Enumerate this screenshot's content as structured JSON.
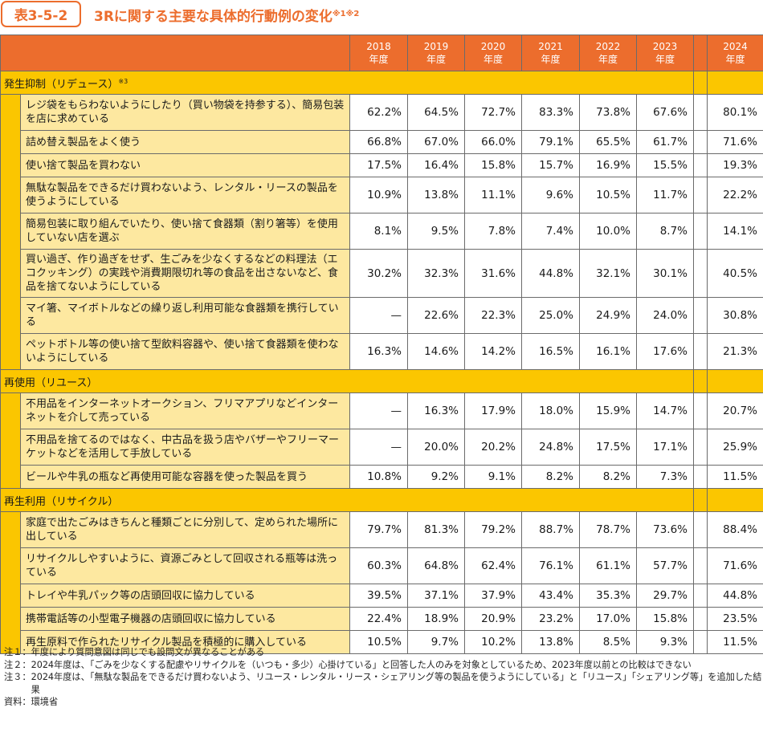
{
  "table_id": "表3-5-2",
  "title": "3Rに関する主要な具体的行動例の変化",
  "title_sup": "※1※2",
  "years": [
    {
      "year": "2018",
      "unit": "年度"
    },
    {
      "year": "2019",
      "unit": "年度"
    },
    {
      "year": "2020",
      "unit": "年度"
    },
    {
      "year": "2021",
      "unit": "年度"
    },
    {
      "year": "2022",
      "unit": "年度"
    },
    {
      "year": "2023",
      "unit": "年度"
    },
    {
      "year": "2024",
      "unit": "年度"
    }
  ],
  "categories": [
    {
      "name": "発生抑制（リデュース）",
      "sup": "※3",
      "rows": [
        {
          "label": "レジ袋をもらわないようにしたり（買い物袋を持参する）、簡易包装を店に求めている",
          "values": [
            "62.2%",
            "64.5%",
            "72.7%",
            "83.3%",
            "73.8%",
            "67.6%",
            "80.1%"
          ]
        },
        {
          "label": "詰め替え製品をよく使う",
          "values": [
            "66.8%",
            "67.0%",
            "66.0%",
            "79.1%",
            "65.5%",
            "61.7%",
            "71.6%"
          ]
        },
        {
          "label": "使い捨て製品を買わない",
          "values": [
            "17.5%",
            "16.4%",
            "15.8%",
            "15.7%",
            "16.9%",
            "15.5%",
            "19.3%"
          ]
        },
        {
          "label": "無駄な製品をできるだけ買わないよう、レンタル・リースの製品を使うようにしている",
          "values": [
            "10.9%",
            "13.8%",
            "11.1%",
            "9.6%",
            "10.5%",
            "11.7%",
            "22.2%"
          ]
        },
        {
          "label": "簡易包装に取り組んでいたり、使い捨て食器類（割り箸等）を使用していない店を選ぶ",
          "values": [
            "8.1%",
            "9.5%",
            "7.8%",
            "7.4%",
            "10.0%",
            "8.7%",
            "14.1%"
          ]
        },
        {
          "label": "買い過ぎ、作り過ぎをせず、生ごみを少なくするなどの料理法（エコクッキング）の実践や消費期限切れ等の食品を出さないなど、食品を捨てないようにしている",
          "values": [
            "30.2%",
            "32.3%",
            "31.6%",
            "44.8%",
            "32.1%",
            "30.1%",
            "40.5%"
          ]
        },
        {
          "label": "マイ箸、マイボトルなどの繰り返し利用可能な食器類を携行している",
          "values": [
            "—",
            "22.6%",
            "22.3%",
            "25.0%",
            "24.9%",
            "24.0%",
            "30.8%"
          ]
        },
        {
          "label": "ペットボトル等の使い捨て型飲料容器や、使い捨て食器類を使わないようにしている",
          "values": [
            "16.3%",
            "14.6%",
            "14.2%",
            "16.5%",
            "16.1%",
            "17.6%",
            "21.3%"
          ]
        }
      ]
    },
    {
      "name": "再使用（リユース）",
      "sup": "",
      "rows": [
        {
          "label": "不用品をインターネットオークション、フリマアプリなどインターネットを介して売っている",
          "values": [
            "—",
            "16.3%",
            "17.9%",
            "18.0%",
            "15.9%",
            "14.7%",
            "20.7%"
          ]
        },
        {
          "label": "不用品を捨てるのではなく、中古品を扱う店やバザーやフリーマーケットなどを活用して手放している",
          "values": [
            "—",
            "20.0%",
            "20.2%",
            "24.8%",
            "17.5%",
            "17.1%",
            "25.9%"
          ]
        },
        {
          "label": "ビールや牛乳の瓶など再使用可能な容器を使った製品を買う",
          "values": [
            "10.8%",
            "9.2%",
            "9.1%",
            "8.2%",
            "8.2%",
            "7.3%",
            "11.5%"
          ]
        }
      ]
    },
    {
      "name": "再生利用（リサイクル）",
      "sup": "",
      "rows": [
        {
          "label": "家庭で出たごみはきちんと種類ごとに分別して、定められた場所に出している",
          "values": [
            "79.7%",
            "81.3%",
            "79.2%",
            "88.7%",
            "78.7%",
            "73.6%",
            "88.4%"
          ]
        },
        {
          "label": "リサイクルしやすいように、資源ごみとして回収される瓶等は洗っている",
          "values": [
            "60.3%",
            "64.8%",
            "62.4%",
            "76.1%",
            "61.1%",
            "57.7%",
            "71.6%"
          ]
        },
        {
          "label": "トレイや牛乳パック等の店頭回収に協力している",
          "values": [
            "39.5%",
            "37.1%",
            "37.9%",
            "43.4%",
            "35.3%",
            "29.7%",
            "44.8%"
          ]
        },
        {
          "label": "携帯電話等の小型電子機器の店頭回収に協力している",
          "values": [
            "22.4%",
            "18.9%",
            "20.9%",
            "23.2%",
            "17.0%",
            "15.8%",
            "23.5%"
          ]
        },
        {
          "label": "再生原料で作られたリサイクル製品を積極的に購入している",
          "values": [
            "10.5%",
            "9.7%",
            "10.2%",
            "13.8%",
            "8.5%",
            "9.3%",
            "11.5%"
          ]
        }
      ]
    }
  ],
  "notes": [
    {
      "key": "注１：",
      "text": "年度により質問意図は同じでも設問文が異なることがある"
    },
    {
      "key": "注２：",
      "text": "2024年度は、「ごみを少なくする配慮やリサイクルを（いつも・多少）心掛けている」と回答した人のみを対象としているため、2023年度以前との比較はできない"
    },
    {
      "key": "注３：",
      "text": "2024年度は、「無駄な製品をできるだけ買わないよう、リユース・レンタル・リース・シェアリング等の製品を使うようにしている」と「リユース」「シェアリング等」を追加した結果"
    },
    {
      "key": "資料：",
      "text": "環境省"
    }
  ]
}
